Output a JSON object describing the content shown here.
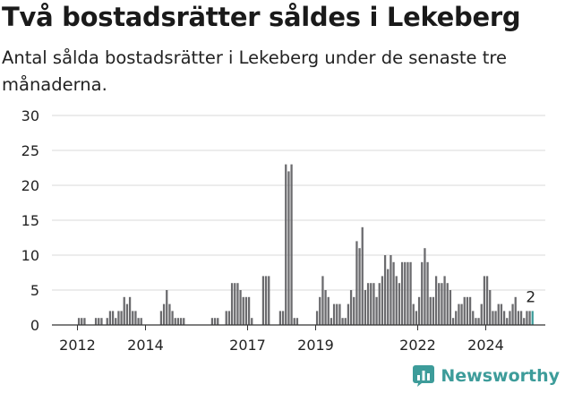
{
  "title": "Två bostadsrätter såldes i Lekeberg",
  "subtitle": "Antal sålda bostadsrätter i Lekeberg under de senaste tre månaderna.",
  "brand": "Newsworthy",
  "colors": {
    "bar": "#6b6b6e",
    "highlight": "#3d9c9a",
    "grid": "#d9d9d9",
    "axis": "#333333",
    "brand": "#3d9c9a"
  },
  "chart_data": {
    "type": "bar",
    "x_unit": "year",
    "x_range": [
      2011.25,
      2025.75
    ],
    "xticks": [
      2012,
      2014,
      2017,
      2019,
      2022,
      2024
    ],
    "ylim": [
      0,
      30
    ],
    "yticks": [
      0,
      5,
      10,
      15,
      20,
      25,
      30
    ],
    "grid": true,
    "highlight_label": "2",
    "values": [
      [
        2012.0,
        1
      ],
      [
        2012.083,
        1
      ],
      [
        2012.167,
        1
      ],
      [
        2012.5,
        1
      ],
      [
        2012.583,
        1
      ],
      [
        2012.667,
        1
      ],
      [
        2012.833,
        1
      ],
      [
        2012.917,
        2
      ],
      [
        2013.0,
        2
      ],
      [
        2013.083,
        1
      ],
      [
        2013.167,
        2
      ],
      [
        2013.25,
        2
      ],
      [
        2013.333,
        4
      ],
      [
        2013.417,
        3
      ],
      [
        2013.5,
        4
      ],
      [
        2013.583,
        2
      ],
      [
        2013.667,
        2
      ],
      [
        2013.75,
        1
      ],
      [
        2013.833,
        1
      ],
      [
        2014.417,
        2
      ],
      [
        2014.5,
        3
      ],
      [
        2014.583,
        5
      ],
      [
        2014.667,
        3
      ],
      [
        2014.75,
        2
      ],
      [
        2014.833,
        1
      ],
      [
        2014.917,
        1
      ],
      [
        2015.0,
        1
      ],
      [
        2015.083,
        1
      ],
      [
        2015.917,
        1
      ],
      [
        2016.0,
        1
      ],
      [
        2016.083,
        1
      ],
      [
        2016.333,
        2
      ],
      [
        2016.417,
        2
      ],
      [
        2016.5,
        6
      ],
      [
        2016.583,
        6
      ],
      [
        2016.667,
        6
      ],
      [
        2016.75,
        5
      ],
      [
        2016.833,
        4
      ],
      [
        2016.917,
        4
      ],
      [
        2017.0,
        4
      ],
      [
        2017.083,
        1
      ],
      [
        2017.417,
        7
      ],
      [
        2017.5,
        7
      ],
      [
        2017.583,
        7
      ],
      [
        2017.917,
        2
      ],
      [
        2018.0,
        2
      ],
      [
        2018.083,
        23
      ],
      [
        2018.167,
        22
      ],
      [
        2018.25,
        23
      ],
      [
        2018.333,
        1
      ],
      [
        2018.417,
        1
      ],
      [
        2019.0,
        2
      ],
      [
        2019.083,
        4
      ],
      [
        2019.167,
        7
      ],
      [
        2019.25,
        5
      ],
      [
        2019.333,
        4
      ],
      [
        2019.417,
        1
      ],
      [
        2019.5,
        3
      ],
      [
        2019.583,
        3
      ],
      [
        2019.667,
        3
      ],
      [
        2019.75,
        1
      ],
      [
        2019.833,
        1
      ],
      [
        2019.917,
        3
      ],
      [
        2020.0,
        5
      ],
      [
        2020.083,
        4
      ],
      [
        2020.167,
        12
      ],
      [
        2020.25,
        11
      ],
      [
        2020.333,
        14
      ],
      [
        2020.417,
        5
      ],
      [
        2020.5,
        6
      ],
      [
        2020.583,
        6
      ],
      [
        2020.667,
        6
      ],
      [
        2020.75,
        4
      ],
      [
        2020.833,
        6
      ],
      [
        2020.917,
        7
      ],
      [
        2021.0,
        10
      ],
      [
        2021.083,
        8
      ],
      [
        2021.167,
        10
      ],
      [
        2021.25,
        9
      ],
      [
        2021.333,
        7
      ],
      [
        2021.417,
        6
      ],
      [
        2021.5,
        9
      ],
      [
        2021.583,
        9
      ],
      [
        2021.667,
        9
      ],
      [
        2021.75,
        9
      ],
      [
        2021.833,
        3
      ],
      [
        2021.917,
        2
      ],
      [
        2022.0,
        4
      ],
      [
        2022.083,
        9
      ],
      [
        2022.167,
        11
      ],
      [
        2022.25,
        9
      ],
      [
        2022.333,
        4
      ],
      [
        2022.417,
        4
      ],
      [
        2022.5,
        7
      ],
      [
        2022.583,
        6
      ],
      [
        2022.667,
        6
      ],
      [
        2022.75,
        7
      ],
      [
        2022.833,
        6
      ],
      [
        2022.917,
        5
      ],
      [
        2023.0,
        1
      ],
      [
        2023.083,
        2
      ],
      [
        2023.167,
        3
      ],
      [
        2023.25,
        3
      ],
      [
        2023.333,
        4
      ],
      [
        2023.417,
        4
      ],
      [
        2023.5,
        4
      ],
      [
        2023.583,
        2
      ],
      [
        2023.667,
        1
      ],
      [
        2023.75,
        1
      ],
      [
        2023.833,
        3
      ],
      [
        2023.917,
        7
      ],
      [
        2024.0,
        7
      ],
      [
        2024.083,
        5
      ],
      [
        2024.167,
        2
      ],
      [
        2024.25,
        2
      ],
      [
        2024.333,
        3
      ],
      [
        2024.417,
        3
      ],
      [
        2024.5,
        2
      ],
      [
        2024.583,
        1
      ],
      [
        2024.667,
        2
      ],
      [
        2024.75,
        3
      ],
      [
        2024.833,
        4
      ],
      [
        2024.917,
        2
      ],
      [
        2025.0,
        2
      ],
      [
        2025.083,
        1
      ],
      [
        2025.167,
        2
      ],
      [
        2025.25,
        2
      ],
      [
        2025.333,
        2
      ]
    ]
  }
}
